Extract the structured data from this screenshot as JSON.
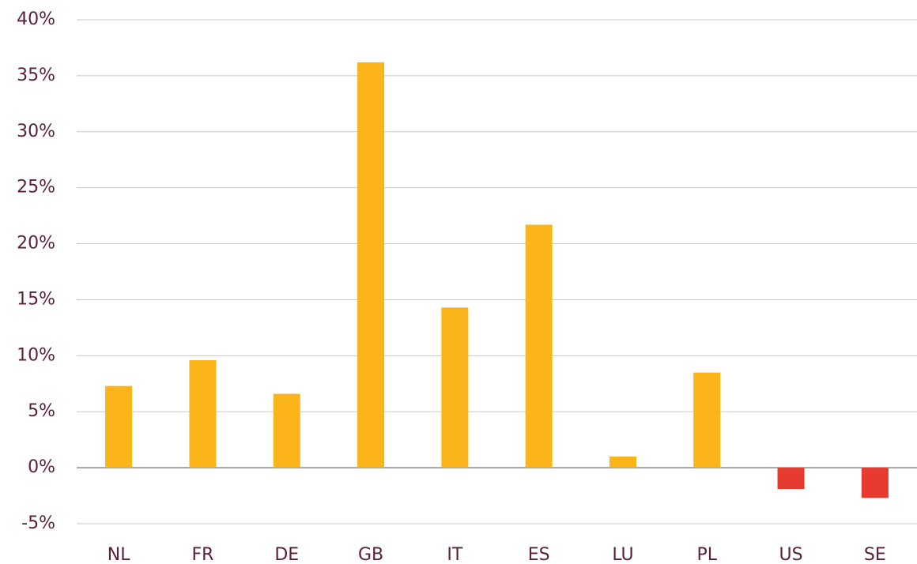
{
  "chart_data": {
    "type": "bar",
    "categories": [
      "NL",
      "FR",
      "DE",
      "GB",
      "IT",
      "ES",
      "LU",
      "PL",
      "US",
      "SE"
    ],
    "values": [
      7.3,
      9.6,
      6.6,
      36.2,
      14.3,
      21.7,
      1.0,
      8.5,
      -1.9,
      -2.7
    ],
    "colors": [
      "#fbb41a",
      "#fbb41a",
      "#fbb41a",
      "#fbb41a",
      "#fbb41a",
      "#fbb41a",
      "#fbb41a",
      "#fbb41a",
      "#e63b2e",
      "#e63b2e"
    ],
    "ylim": [
      -5,
      40
    ],
    "yticks": [
      {
        "value": -5,
        "label": "-5%"
      },
      {
        "value": 0,
        "label": "0%"
      },
      {
        "value": 5,
        "label": "5%"
      },
      {
        "value": 10,
        "label": "10%"
      },
      {
        "value": 15,
        "label": "15%"
      },
      {
        "value": 20,
        "label": "20%"
      },
      {
        "value": 25,
        "label": "25%"
      },
      {
        "value": 30,
        "label": "30%"
      },
      {
        "value": 35,
        "label": "35%"
      },
      {
        "value": 40,
        "label": "40%"
      }
    ],
    "grid": true
  }
}
